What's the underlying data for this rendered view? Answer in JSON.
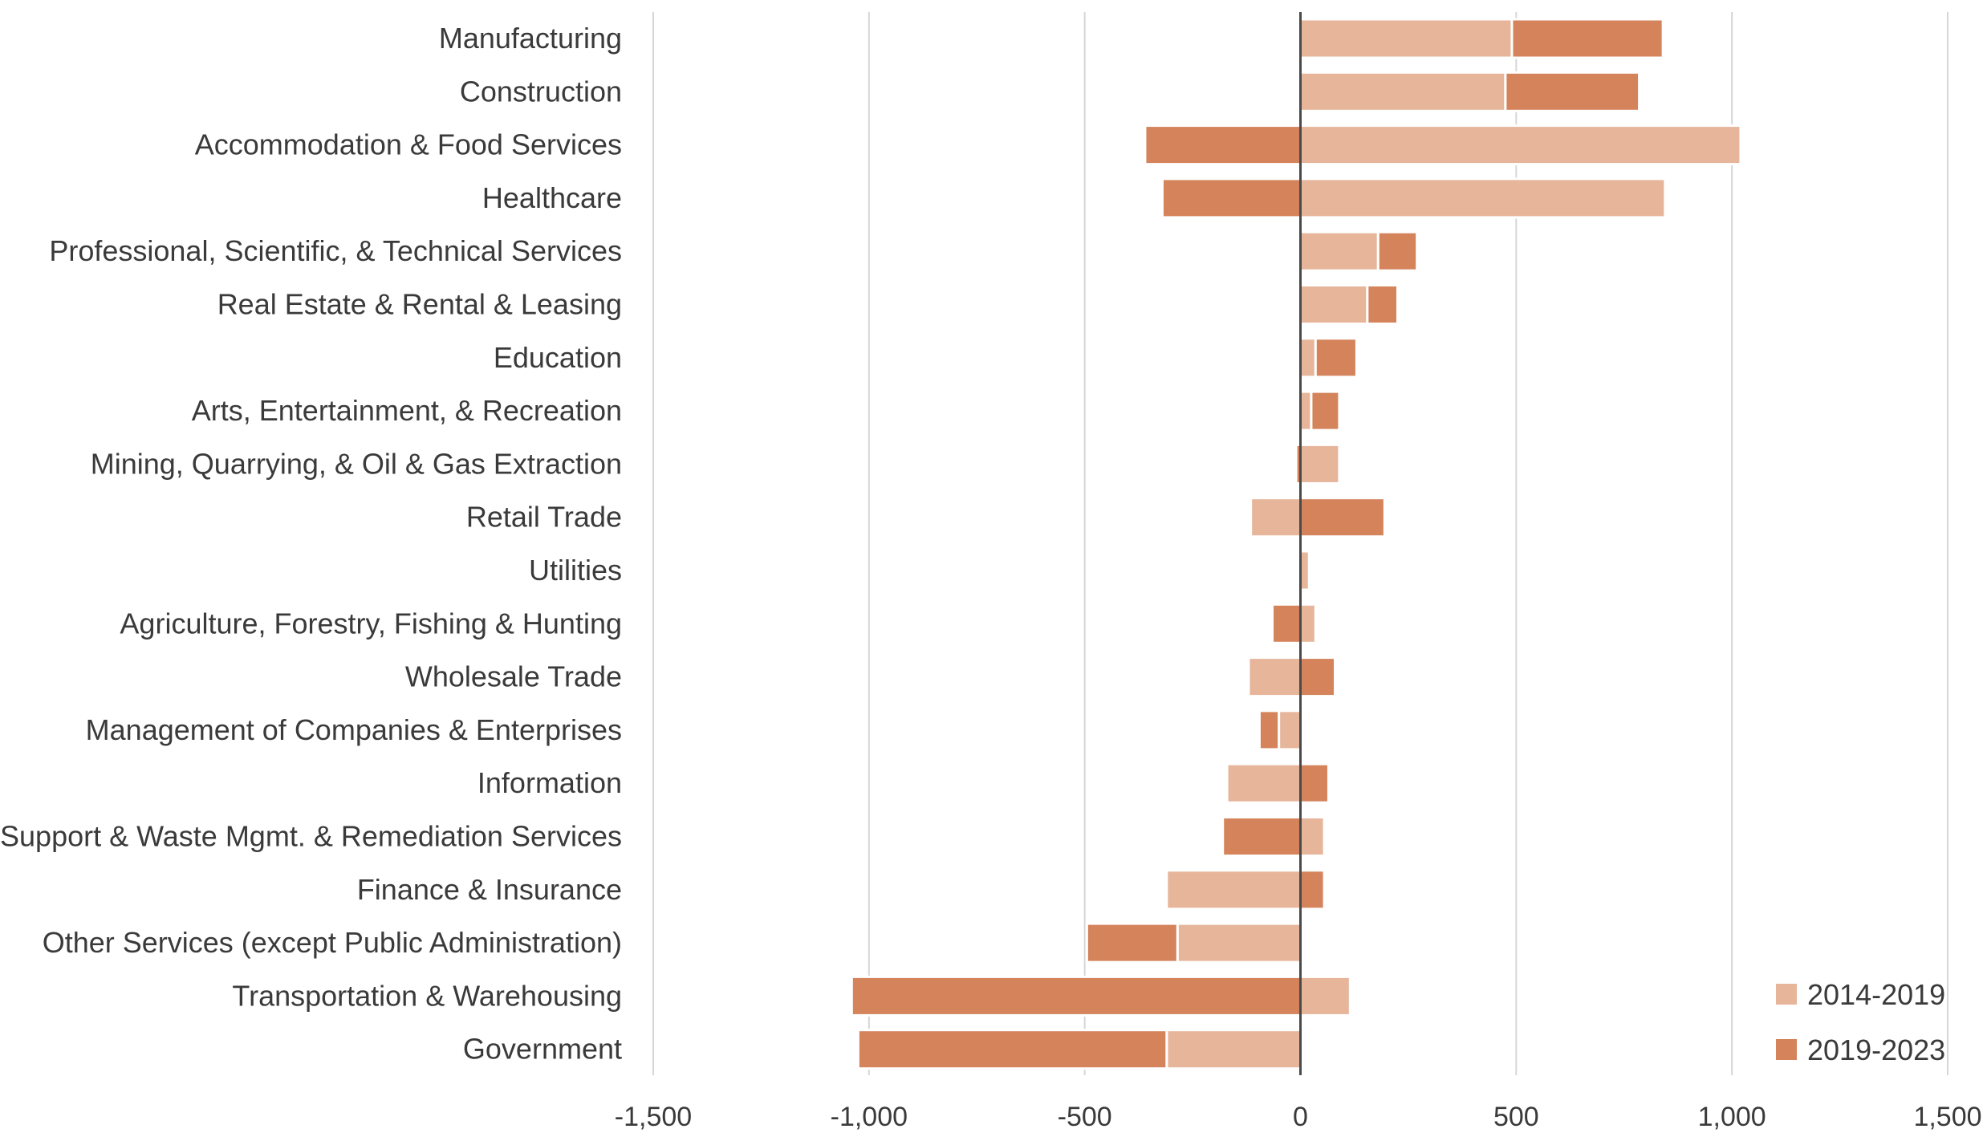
{
  "chart_data": {
    "type": "bar",
    "orientation": "horizontal",
    "stacked": true,
    "title": "",
    "xlabel": "",
    "ylabel": "",
    "xlim": [
      -1500,
      1500
    ],
    "ticks": [
      -1500,
      -1000,
      -500,
      0,
      500,
      1000,
      1500
    ],
    "tick_labels": [
      "-1,500",
      "-1,000",
      "-500",
      "0",
      "500",
      "1,000",
      "1,500"
    ],
    "grid": true,
    "legend_position": "bottom-right",
    "categories": [
      "Manufacturing",
      "Construction",
      "Accommodation & Food Services",
      "Healthcare",
      "Professional, Scientific, & Technical Services",
      "Real Estate & Rental & Leasing",
      "Education",
      "Arts, Entertainment, & Recreation",
      "Mining, Quarrying, & Oil & Gas Extraction",
      "Retail Trade",
      "Utilities",
      "Agriculture, Forestry, Fishing & Hunting",
      "Wholesale Trade",
      "Management of Companies & Enterprises",
      "Information",
      "Admin. & Support & Waste Mgmt. & Remediation Services",
      "Finance & Insurance",
      "Other Services (except Public Administration)",
      "Transportation & Warehousing",
      "Government"
    ],
    "series": [
      {
        "name": "2014-2019",
        "color": "#e6b59a",
        "values": [
          490,
          475,
          1020,
          845,
          180,
          155,
          35,
          25,
          90,
          -115,
          20,
          35,
          -120,
          -50,
          -170,
          55,
          -310,
          -285,
          115,
          -310
        ]
      },
      {
        "name": "2019-2023",
        "color": "#d4835a",
        "values": [
          350,
          310,
          -360,
          -320,
          90,
          70,
          95,
          65,
          -10,
          195,
          0,
          -65,
          80,
          -45,
          65,
          -180,
          55,
          -210,
          -1040,
          -715
        ]
      }
    ]
  }
}
